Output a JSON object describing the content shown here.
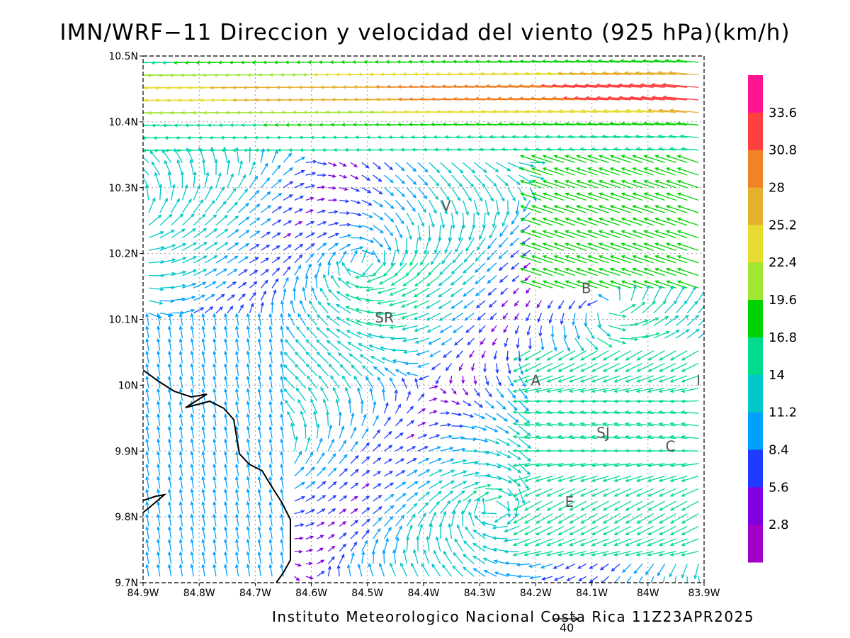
{
  "title": "IMN/WRF−11 Direccion y velocidad del viento (925 hPa)(km/h)",
  "footer": "Instituto Meteorologico Nacional Costa Rica 11Z23APR2025",
  "reference_vector_label": "40",
  "map": {
    "lon_range": [
      -84.9,
      -83.9
    ],
    "lat_range": [
      9.7,
      10.5
    ],
    "x_tick_labels": [
      "84.9W",
      "84.8W",
      "84.7W",
      "84.6W",
      "84.5W",
      "84.4W",
      "84.3W",
      "84.2W",
      "84.1W",
      "84W",
      "83.9W"
    ],
    "y_tick_labels": [
      "9.7N",
      "9.8N",
      "9.9N",
      "10N",
      "10.1N",
      "10.2N",
      "10.3N",
      "10.4N",
      "10.5N"
    ],
    "grid": true,
    "coastline": true,
    "cities": [
      {
        "label": "V",
        "lon": -84.36,
        "lat": 10.265
      },
      {
        "label": "SR",
        "lon": -84.47,
        "lat": 10.095
      },
      {
        "label": "B",
        "lon": -84.11,
        "lat": 10.14
      },
      {
        "label": "A",
        "lon": -84.2,
        "lat": 10.0
      },
      {
        "label": "SJ",
        "lon": -84.08,
        "lat": 9.92
      },
      {
        "label": "C",
        "lon": -83.96,
        "lat": 9.9
      },
      {
        "label": "E",
        "lon": -84.14,
        "lat": 9.815
      },
      {
        "label": "I",
        "lon": -83.91,
        "lat": 10.0
      }
    ]
  },
  "colorbar": {
    "labels": [
      "33.6",
      "30.8",
      "28",
      "25.2",
      "22.4",
      "19.6",
      "16.8",
      "14",
      "11.2",
      "8.4",
      "5.6",
      "2.8"
    ],
    "colors": [
      "#ff1493",
      "#ff4040",
      "#f08228",
      "#e6af2d",
      "#e6dc32",
      "#a0e632",
      "#00d200",
      "#00dc8c",
      "#00c8c8",
      "#00a0ff",
      "#1e3cff",
      "#8000e0",
      "#a000c8"
    ],
    "units": "km/h"
  },
  "colors": {
    "coastline": "#000000",
    "grid": "#999999",
    "city_label": "#555555"
  }
}
